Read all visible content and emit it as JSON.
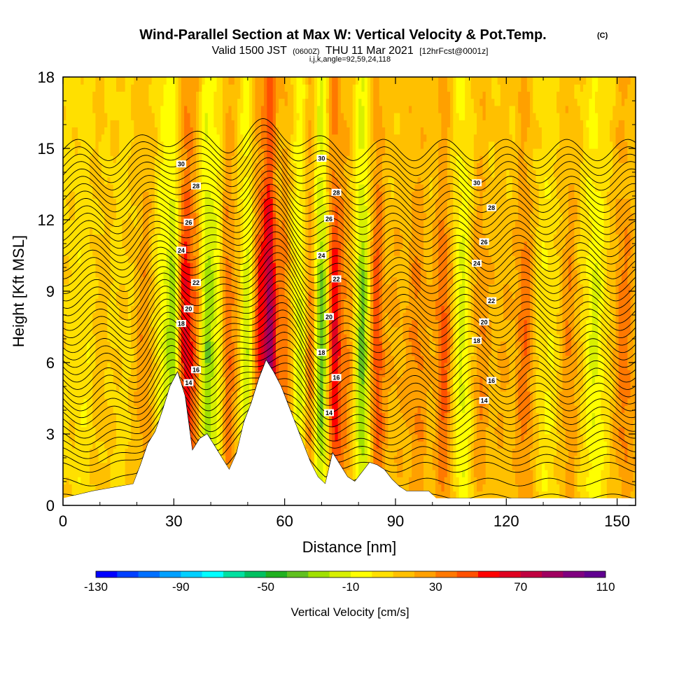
{
  "title": {
    "main": "Wind-Parallel Section at Max W: Vertical Velocity & Pot.Temp.",
    "copyright": "(C)",
    "valid_prefix": "Valid 1500 JST",
    "utc": "(0600Z)",
    "valid_date": "THU 11 Mar 2021",
    "forecast": "[12hrFcst@0001z]",
    "indices": "i,j,k,angle=92,59,24,118"
  },
  "chart_data": {
    "type": "heatmap",
    "xlabel": "Distance [nm]",
    "ylabel": "Height [Kft MSL]",
    "xlim": [
      0,
      155
    ],
    "ylim": [
      0,
      18
    ],
    "x_ticks": [
      0,
      30,
      60,
      90,
      120,
      150
    ],
    "y_ticks": [
      0,
      3,
      6,
      9,
      12,
      15,
      18
    ],
    "colorbar": {
      "title": "Vertical Velocity [cm/s]",
      "min": -130,
      "max": 110,
      "step": 10,
      "tick_values": [
        -130,
        -90,
        -50,
        -10,
        30,
        70,
        110
      ],
      "colors": [
        "#0000ff",
        "#0040ff",
        "#0070ff",
        "#00a0ff",
        "#00d0ff",
        "#00ffff",
        "#00e0a0",
        "#00c060",
        "#20b020",
        "#60c020",
        "#a0e000",
        "#d8f000",
        "#ffff00",
        "#ffe000",
        "#ffc000",
        "#ffa000",
        "#ff7800",
        "#ff5000",
        "#ff0000",
        "#e00020",
        "#c00040",
        "#a00060",
        "#800080",
        "#600090"
      ]
    },
    "vertical_velocity_columns": [
      {
        "x": 6,
        "w": 3.0,
        "value": -6
      },
      {
        "x": 10,
        "w": 2.5,
        "value": 8
      },
      {
        "x": 22,
        "w": 2.5,
        "value": 20
      },
      {
        "x": 27,
        "w": 2.0,
        "value": -15
      },
      {
        "x": 30,
        "w": 1.8,
        "value": -40
      },
      {
        "x": 33,
        "w": 2.2,
        "value": 55
      },
      {
        "x": 36,
        "w": 1.8,
        "value": 22
      },
      {
        "x": 39,
        "w": 2.0,
        "value": -35
      },
      {
        "x": 42,
        "w": 2.2,
        "value": -15
      },
      {
        "x": 44.5,
        "w": 1.8,
        "value": 32
      },
      {
        "x": 47,
        "w": 1.8,
        "value": 10
      },
      {
        "x": 50,
        "w": 2.0,
        "value": -30
      },
      {
        "x": 53,
        "w": 2.0,
        "value": 42
      },
      {
        "x": 56,
        "w": 1.8,
        "value": 75
      },
      {
        "x": 60,
        "w": 2.0,
        "value": 28
      },
      {
        "x": 64,
        "w": 2.0,
        "value": -22
      },
      {
        "x": 67,
        "w": 1.5,
        "value": 30
      },
      {
        "x": 70,
        "w": 2.0,
        "value": -45
      },
      {
        "x": 73.5,
        "w": 2.0,
        "value": 55
      },
      {
        "x": 77,
        "w": 2.0,
        "value": 20
      },
      {
        "x": 81,
        "w": 2.0,
        "value": -42
      },
      {
        "x": 85,
        "w": 2.0,
        "value": 40
      },
      {
        "x": 90,
        "w": 3.0,
        "value": 12
      },
      {
        "x": 96,
        "w": 3.0,
        "value": 24
      },
      {
        "x": 103,
        "w": 2.5,
        "value": 35
      },
      {
        "x": 108,
        "w": 2.5,
        "value": -22
      },
      {
        "x": 113,
        "w": 2.5,
        "value": 22
      },
      {
        "x": 119,
        "w": 3.0,
        "value": 12
      },
      {
        "x": 125,
        "w": 2.5,
        "value": 30
      },
      {
        "x": 131,
        "w": 3.0,
        "value": -8
      },
      {
        "x": 137,
        "w": 2.5,
        "value": 22
      },
      {
        "x": 144,
        "w": 2.5,
        "value": -20
      },
      {
        "x": 152,
        "w": 3.0,
        "value": 28
      }
    ],
    "terrain": {
      "x": [
        0,
        8,
        19,
        21,
        23,
        25,
        27,
        29,
        31,
        33,
        35,
        37,
        39,
        41,
        43,
        45,
        47,
        49,
        51,
        53,
        55,
        57,
        59,
        61,
        63,
        65,
        67,
        69,
        71,
        73,
        75,
        77,
        79,
        81,
        83,
        85,
        87,
        89,
        91,
        93,
        95,
        97,
        99,
        101,
        102,
        155
      ],
      "y": [
        0.3,
        0.6,
        0.9,
        1.7,
        2.6,
        3.1,
        4.0,
        5.0,
        5.6,
        4.6,
        2.3,
        2.8,
        3.0,
        2.5,
        2.0,
        1.5,
        2.2,
        3.5,
        4.3,
        5.3,
        6.1,
        5.6,
        5.0,
        4.2,
        3.4,
        2.6,
        1.8,
        1.2,
        0.9,
        2.2,
        1.7,
        1.2,
        1.0,
        1.4,
        1.8,
        1.7,
        1.5,
        1.1,
        0.8,
        0.6,
        0.6,
        0.6,
        0.6,
        0.3,
        0.3,
        0.3
      ]
    },
    "theta_contours": {
      "levels": [
        8,
        9,
        10,
        10.5,
        11,
        11.5,
        12,
        12.5,
        13,
        13.5,
        14,
        14.5,
        15,
        15.5,
        16,
        16.5,
        17,
        17.5,
        18,
        18.5,
        19,
        19.5,
        20,
        20.5,
        21,
        21.5,
        22,
        22.5,
        23,
        23.5,
        24,
        24.5,
        25,
        25.5,
        26,
        26.5,
        27,
        27.5,
        28,
        28.5,
        29,
        29.5,
        30,
        30.5,
        31,
        31.5
      ],
      "labeled_levels": [
        14,
        16,
        18,
        20,
        22,
        24,
        26,
        28,
        30
      ]
    }
  }
}
